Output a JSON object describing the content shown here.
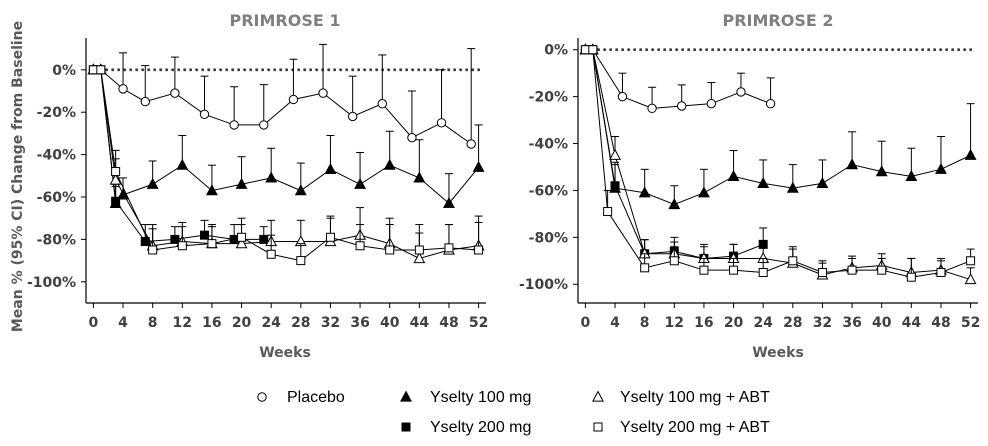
{
  "chart_data": [
    {
      "type": "line",
      "title": "PRIMROSE 1",
      "xlabel": "Weeks",
      "ylabel": "Mean % (95% CI) Change from Baseline",
      "xticks": [
        0,
        4,
        8,
        12,
        16,
        20,
        24,
        28,
        32,
        36,
        40,
        44,
        48,
        52
      ],
      "yticks": [
        0,
        -20,
        -40,
        -60,
        -80,
        -100
      ],
      "ytick_labels": [
        "0%",
        "-20%",
        "-40%",
        "-60%",
        "-80%",
        "-100%"
      ],
      "xlim": [
        -1,
        53
      ],
      "ylim": [
        -110,
        15
      ],
      "reference_line": 0,
      "series": [
        {
          "name": "Placebo",
          "marker": "circle-open",
          "x": [
            0,
            1,
            4,
            7,
            11,
            15,
            19,
            23,
            27,
            31,
            35,
            39,
            43,
            47,
            51
          ],
          "y": [
            0,
            0,
            -9,
            -15,
            -11,
            -21,
            -26,
            -26,
            -14,
            -11,
            -22,
            -16,
            -32,
            -25,
            -35
          ],
          "err_up": [
            0,
            0,
            17,
            17,
            17,
            18,
            18,
            19,
            19,
            23,
            19,
            23,
            22,
            25,
            45
          ]
        },
        {
          "name": "Yselty 100 mg",
          "marker": "triangle-filled",
          "x": [
            0,
            1,
            3,
            4,
            8,
            12,
            16,
            20,
            24,
            28,
            32,
            36,
            40,
            44,
            48,
            52
          ],
          "y": [
            0,
            0,
            -63,
            -59,
            -54,
            -45,
            -57,
            -54,
            -51,
            -57,
            -47,
            -54,
            -45,
            -51,
            -63,
            -46
          ],
          "err_up": [
            0,
            0,
            8,
            8,
            11,
            14,
            12,
            13,
            14,
            13,
            16,
            15,
            16,
            18,
            14,
            20
          ]
        },
        {
          "name": "Yselty 200 mg",
          "marker": "square-filled",
          "x": [
            0,
            1,
            3,
            7,
            11,
            15,
            19,
            23
          ],
          "y": [
            0,
            0,
            -62,
            -81,
            -80,
            -78,
            -80,
            -80
          ],
          "err_up": [
            0,
            0,
            8,
            8,
            6,
            7,
            7,
            6
          ]
        },
        {
          "name": "Yselty 100 mg + ABT",
          "marker": "triangle-open",
          "x": [
            0,
            1,
            3,
            8,
            12,
            16,
            20,
            24,
            28,
            32,
            36,
            40,
            44,
            48,
            52
          ],
          "y": [
            0,
            0,
            -52,
            -83,
            -81,
            -82,
            -82,
            -81,
            -81,
            -81,
            -78,
            -82,
            -89,
            -85,
            -83
          ],
          "err_up": [
            0,
            0,
            10,
            10,
            9,
            8,
            9,
            10,
            10,
            11,
            13,
            12,
            12,
            12,
            14
          ]
        },
        {
          "name": "Yselty 200 mg + ABT",
          "marker": "square-open",
          "x": [
            0,
            1,
            3,
            8,
            12,
            16,
            20,
            24,
            28,
            32,
            36,
            40,
            44,
            48,
            52
          ],
          "y": [
            0,
            0,
            -48,
            -85,
            -83,
            -82,
            -79,
            -87,
            -90,
            -79,
            -83,
            -85,
            -85,
            -84,
            -85
          ],
          "err_up": [
            0,
            0,
            10,
            10,
            9,
            9,
            9,
            9,
            8,
            10,
            10,
            12,
            12,
            11,
            13
          ]
        }
      ]
    },
    {
      "type": "line",
      "title": "PRIMROSE 2",
      "xlabel": "Weeks",
      "ylabel": "",
      "xticks": [
        0,
        4,
        8,
        12,
        16,
        20,
        24,
        28,
        32,
        36,
        40,
        44,
        48,
        52
      ],
      "yticks": [
        0,
        -20,
        -40,
        -60,
        -80,
        -100
      ],
      "ytick_labels": [
        "0%",
        "-20%",
        "-40%",
        "-60%",
        "-80%",
        "-100%"
      ],
      "xlim": [
        -1,
        53
      ],
      "ylim": [
        -108,
        5
      ],
      "reference_line": 0,
      "series": [
        {
          "name": "Placebo",
          "marker": "circle-open",
          "x": [
            0,
            1,
            5,
            9,
            13,
            17,
            21,
            25
          ],
          "y": [
            0,
            0,
            -20,
            -25,
            -24,
            -23,
            -18,
            -23
          ],
          "err_up": [
            0,
            0,
            10,
            9,
            9,
            9,
            8,
            11
          ]
        },
        {
          "name": "Yselty 100 mg",
          "marker": "triangle-filled",
          "x": [
            0,
            1,
            4,
            8,
            12,
            16,
            20,
            24,
            28,
            32,
            36,
            40,
            44,
            48,
            52
          ],
          "y": [
            0,
            0,
            -59,
            -61,
            -66,
            -61,
            -54,
            -57,
            -59,
            -57,
            -49,
            -52,
            -54,
            -51,
            -45
          ],
          "err_up": [
            0,
            0,
            10,
            10,
            8,
            10,
            11,
            10,
            10,
            10,
            14,
            13,
            12,
            14,
            22
          ]
        },
        {
          "name": "Yselty 200 mg",
          "marker": "square-filled",
          "x": [
            0,
            1,
            4,
            8,
            12,
            16,
            20,
            24
          ],
          "y": [
            0,
            0,
            -58,
            -87,
            -86,
            -89,
            -88,
            -83
          ],
          "err_up": [
            0,
            0,
            10,
            6,
            6,
            6,
            5,
            7
          ]
        },
        {
          "name": "Yselty 100 mg + ABT",
          "marker": "triangle-open",
          "x": [
            0,
            1,
            4,
            8,
            12,
            16,
            20,
            24,
            28,
            32,
            36,
            40,
            44,
            48,
            52
          ],
          "y": [
            0,
            0,
            -45,
            -87,
            -87,
            -89,
            -89,
            -89,
            -91,
            -96,
            -93,
            -92,
            -95,
            -94,
            -98
          ],
          "err_up": [
            0,
            0,
            8,
            6,
            5,
            5,
            6,
            5,
            6,
            5,
            5,
            5,
            6,
            5,
            5
          ]
        },
        {
          "name": "Yselty 200 mg + ABT",
          "marker": "square-open",
          "x": [
            0,
            1,
            3,
            8,
            12,
            16,
            20,
            24,
            28,
            32,
            36,
            40,
            44,
            48,
            52
          ],
          "y": [
            0,
            0,
            -69,
            -93,
            -90,
            -94,
            -94,
            -95,
            -90,
            -95,
            -94,
            -94,
            -97,
            -95,
            -90
          ],
          "err_up": [
            0,
            0,
            9,
            6,
            6,
            5,
            5,
            6,
            6,
            5,
            5,
            5,
            8,
            5,
            5
          ]
        }
      ]
    }
  ],
  "legend": {
    "placement": "bottom-center",
    "entries": [
      {
        "label": "Placebo",
        "marker": "circle-open"
      },
      {
        "label": "Yselty 100 mg",
        "marker": "triangle-filled"
      },
      {
        "label": "Yselty 100 mg + ABT",
        "marker": "triangle-open"
      },
      {
        "label": "Yselty 200 mg",
        "marker": "square-filled"
      },
      {
        "label": "Yselty 200 mg + ABT",
        "marker": "square-open"
      }
    ]
  },
  "colors": {
    "line": "#000000",
    "reference": "#333333",
    "title": "#7f7f7f",
    "tick": "#404040"
  }
}
